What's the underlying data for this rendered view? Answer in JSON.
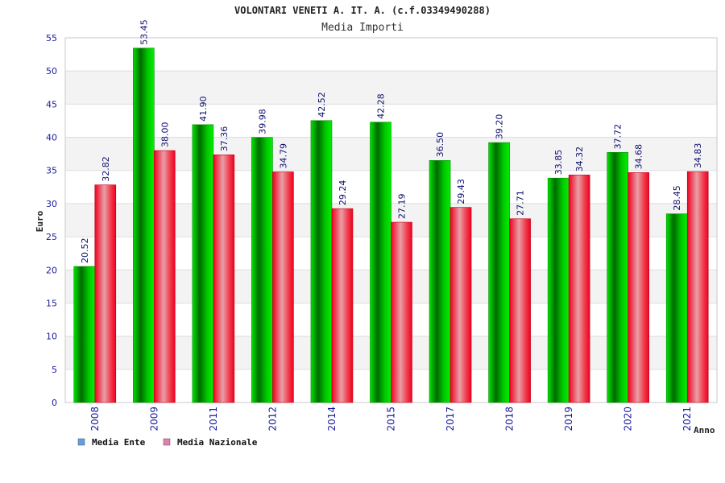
{
  "chart_data": {
    "type": "bar",
    "title": "VOLONTARI VENETI A. IT. A. (c.f.03349490288)",
    "subtitle": "Media Importi",
    "xlabel": "Anno",
    "ylabel": "Euro",
    "ylim": [
      0,
      55
    ],
    "yticks": [
      0,
      5,
      10,
      15,
      20,
      25,
      30,
      35,
      40,
      45,
      50,
      55
    ],
    "grid": true,
    "legend_position": "bottom-left",
    "categories": [
      "2008",
      "2009",
      "2011",
      "2012",
      "2014",
      "2015",
      "2017",
      "2018",
      "2019",
      "2020",
      "2021"
    ],
    "series": [
      {
        "name": "Media Ente",
        "color": "#00c000",
        "legend_color": "#5fa0e6",
        "values": [
          20.52,
          53.45,
          41.9,
          39.98,
          42.52,
          42.28,
          36.5,
          39.2,
          33.85,
          37.72,
          28.45
        ],
        "labels": [
          "20.52",
          "53.45",
          "41.90",
          "39.98",
          "42.52",
          "42.28",
          "36.50",
          "39.20",
          "33.85",
          "37.72",
          "28.45"
        ]
      },
      {
        "name": "Media Nazionale",
        "color": "#e8001c",
        "legend_color": "#e080b0",
        "values": [
          32.82,
          38.0,
          37.36,
          34.79,
          29.24,
          27.19,
          29.43,
          27.71,
          34.32,
          34.68,
          34.83
        ],
        "labels": [
          "32.82",
          "38.00",
          "37.36",
          "34.79",
          "29.24",
          "27.19",
          "29.43",
          "27.71",
          "34.32",
          "34.68",
          "34.83"
        ]
      }
    ]
  }
}
